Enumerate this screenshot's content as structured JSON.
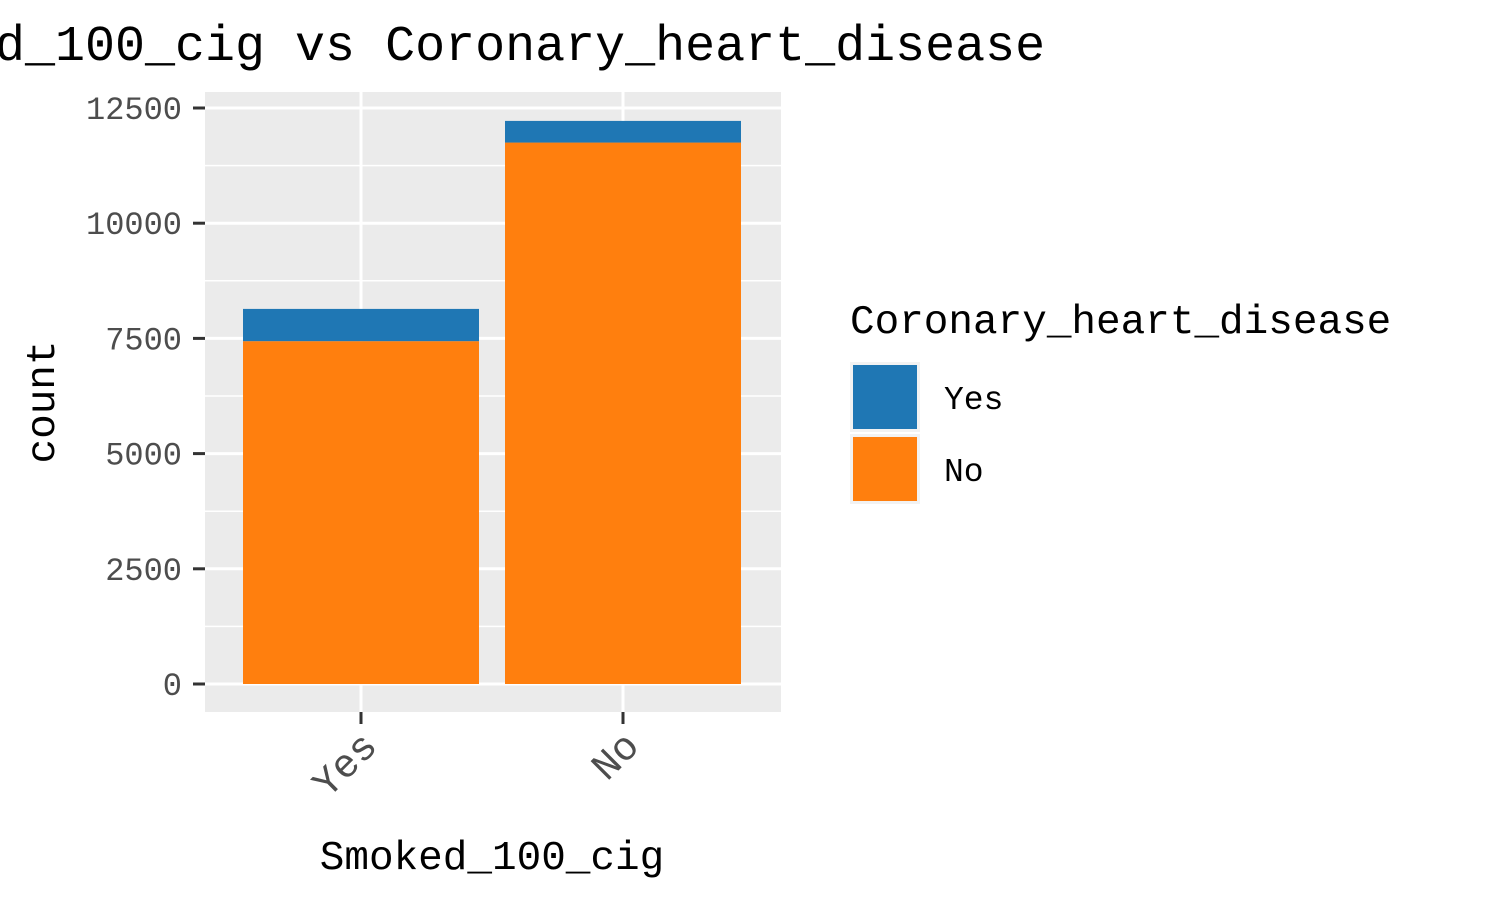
{
  "chart_data": {
    "type": "bar",
    "stacked": true,
    "title": "d_100_cig vs Coronary_heart_disease",
    "xlabel": "Smoked_100_cig",
    "ylabel": "count",
    "categories": [
      "Yes",
      "No"
    ],
    "series": [
      {
        "name": "Yes",
        "color": "#1f77b4",
        "values": [
          700,
          470
        ]
      },
      {
        "name": "No",
        "color": "#ff7f0e",
        "values": [
          7440,
          11750
        ]
      }
    ],
    "ylim": [
      0,
      12500
    ],
    "yticks": [
      "0",
      "2500",
      "5000",
      "7500",
      "10000",
      "12500"
    ],
    "legend": {
      "title": "Coronary_heart_disease",
      "position": "right"
    },
    "grid": true,
    "panel_background": "#ebebeb"
  }
}
